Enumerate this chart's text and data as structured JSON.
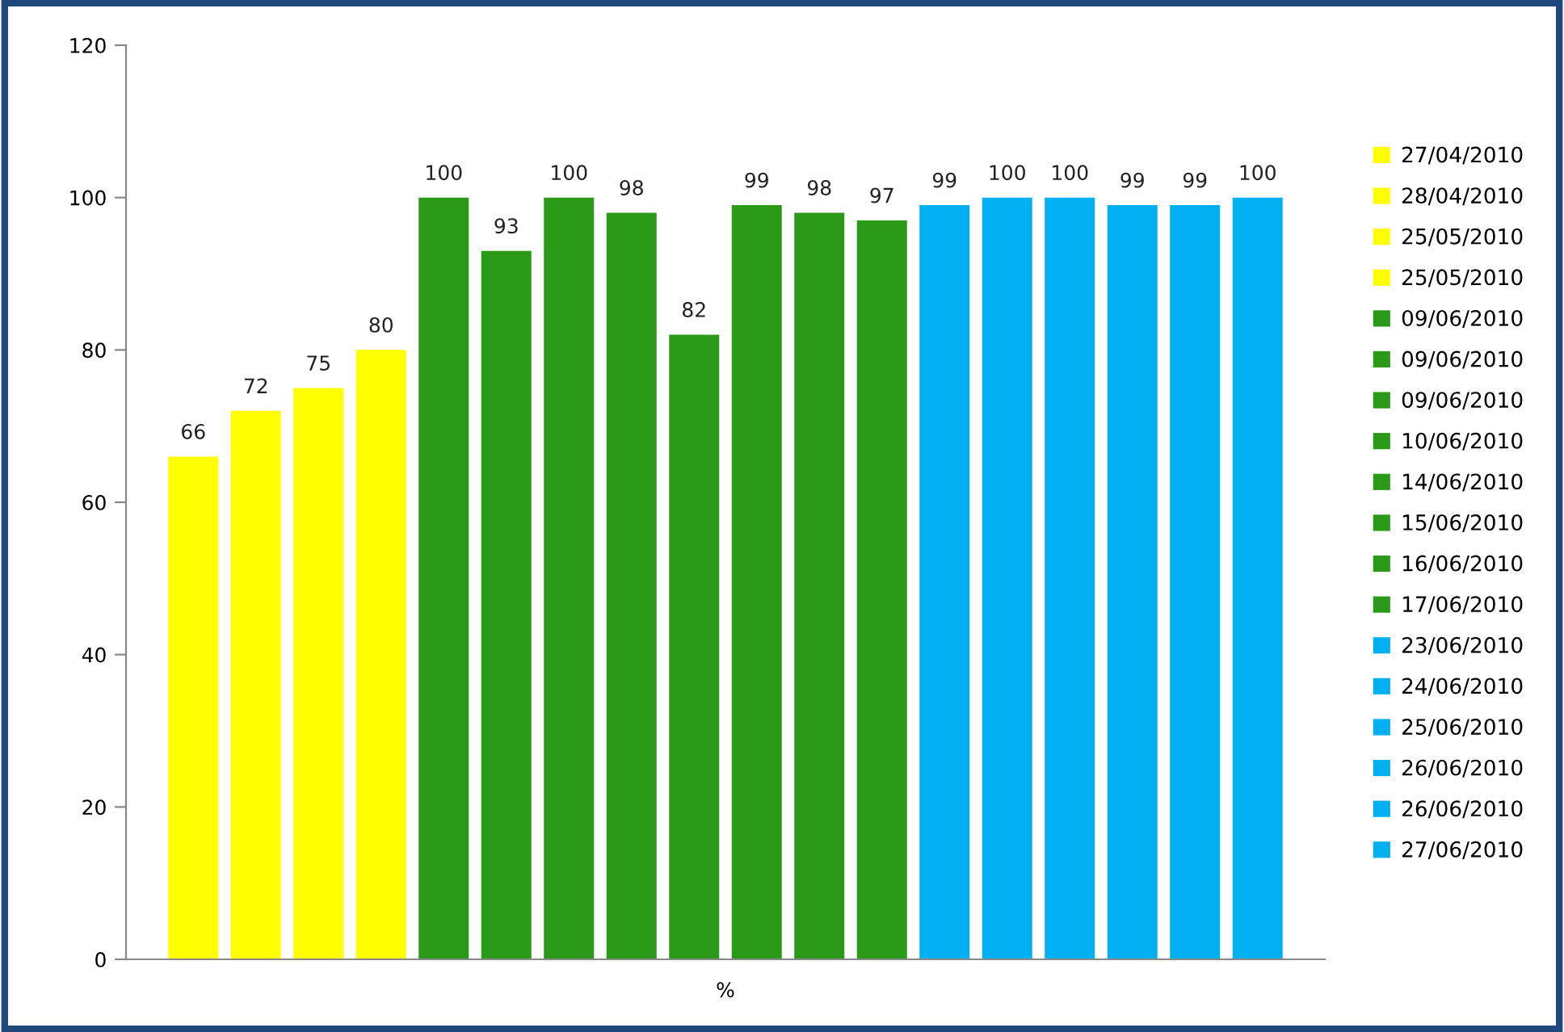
{
  "chart_data": {
    "type": "bar",
    "categories": [
      "%"
    ],
    "ylim": [
      0,
      120
    ],
    "yticks": [
      0,
      20,
      40,
      60,
      80,
      100,
      120
    ],
    "grid": false,
    "legend": "right",
    "data_labels": true,
    "series": [
      {
        "name": "27/04/2010",
        "color": "#ffff00",
        "values": [
          66
        ]
      },
      {
        "name": "28/04/2010",
        "color": "#ffff00",
        "values": [
          72
        ]
      },
      {
        "name": "25/05/2010",
        "color": "#ffff00",
        "values": [
          75
        ]
      },
      {
        "name": "25/05/2010",
        "color": "#ffff00",
        "values": [
          80
        ]
      },
      {
        "name": "09/06/2010",
        "color": "#2a9918",
        "values": [
          100
        ]
      },
      {
        "name": "09/06/2010",
        "color": "#2a9918",
        "values": [
          93
        ]
      },
      {
        "name": "09/06/2010",
        "color": "#2a9918",
        "values": [
          100
        ]
      },
      {
        "name": "10/06/2010",
        "color": "#2a9918",
        "values": [
          98
        ]
      },
      {
        "name": "14/06/2010",
        "color": "#2a9918",
        "values": [
          82
        ]
      },
      {
        "name": "15/06/2010",
        "color": "#2a9918",
        "values": [
          99
        ]
      },
      {
        "name": "16/06/2010",
        "color": "#2a9918",
        "values": [
          98
        ]
      },
      {
        "name": "17/06/2010",
        "color": "#2a9918",
        "values": [
          97
        ]
      },
      {
        "name": "23/06/2010",
        "color": "#00b0f0",
        "values": [
          99
        ]
      },
      {
        "name": "24/06/2010",
        "color": "#00b0f0",
        "values": [
          100
        ]
      },
      {
        "name": "25/06/2010",
        "color": "#00b0f0",
        "values": [
          100
        ]
      },
      {
        "name": "26/06/2010",
        "color": "#00b0f0",
        "values": [
          99
        ]
      },
      {
        "name": "26/06/2010",
        "color": "#00b0f0",
        "values": [
          99
        ]
      },
      {
        "name": "27/06/2010",
        "color": "#00b0f0",
        "values": [
          100
        ]
      }
    ]
  }
}
